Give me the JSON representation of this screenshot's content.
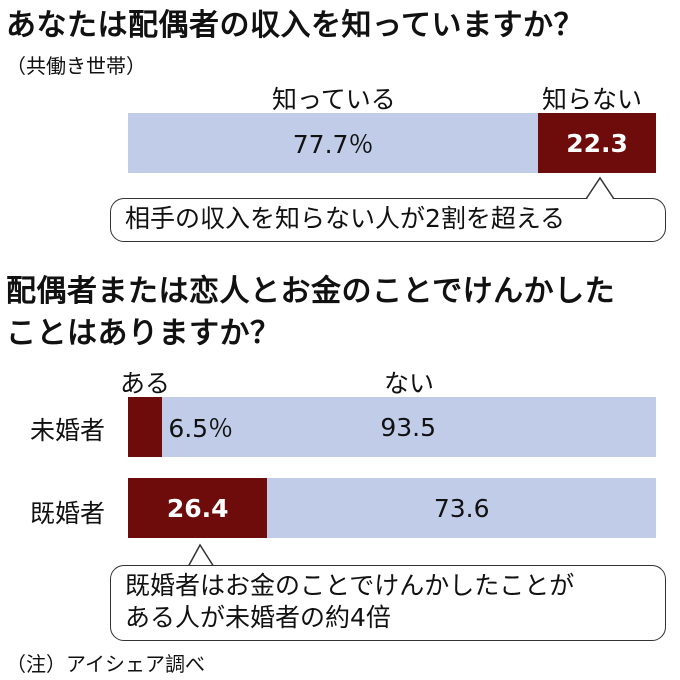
{
  "q1": {
    "title": "あなたは配偶者の収入を知っていますか？",
    "subtitle": "（共働き世帯）",
    "label_know": "知っている",
    "label_dont_know": "知らない",
    "value_know_label": "77.7％",
    "value_dont_know_label": "22.3",
    "callout": "相手の収入を知らない人が2割を超える"
  },
  "q2": {
    "title_line1": "配偶者または恋人とお金のことでけんかした",
    "title_line2": "ことはありますか？",
    "label_yes": "ある",
    "label_no": "ない",
    "row_unmarried": "未婚者",
    "row_married": "既婚者",
    "unmarried_yes_label": "6.5％",
    "unmarried_no_label": "93.5",
    "married_yes_label": "26.4",
    "married_no_label": "73.6",
    "callout_line1": "既婚者はお金のことでけんかしたことが",
    "callout_line2": "ある人が未婚者の約4倍"
  },
  "footnote": "（注）アイシェア調べ",
  "colors": {
    "light_segment": "#c0cce8",
    "dark_segment": "#6e0c0c"
  },
  "chart_data": [
    {
      "type": "bar",
      "orientation": "horizontal-stacked",
      "title": "あなたは配偶者の収入を知っていますか？",
      "subtitle": "（共働き世帯）",
      "categories": [
        "（共働き世帯）"
      ],
      "series": [
        {
          "name": "知っている",
          "values": [
            77.7
          ]
        },
        {
          "name": "知らない",
          "values": [
            22.3
          ]
        }
      ],
      "unit": "％",
      "xlim": [
        0,
        100
      ]
    },
    {
      "type": "bar",
      "orientation": "horizontal-stacked",
      "title": "配偶者または恋人とお金のことでけんかしたことはありますか？",
      "categories": [
        "未婚者",
        "既婚者"
      ],
      "series": [
        {
          "name": "ある",
          "values": [
            6.5,
            26.4
          ]
        },
        {
          "name": "ない",
          "values": [
            93.5,
            73.6
          ]
        }
      ],
      "unit": "％",
      "xlim": [
        0,
        100
      ]
    }
  ]
}
